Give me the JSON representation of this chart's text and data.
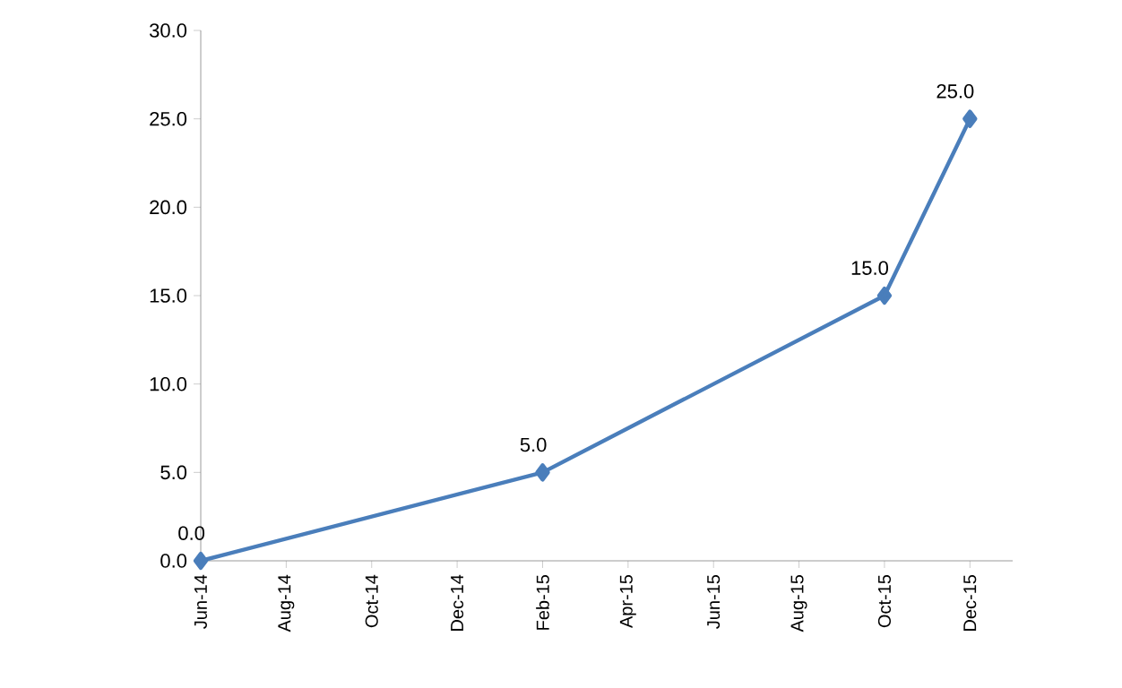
{
  "chart_data": {
    "type": "line",
    "x": [
      "2014-06",
      "2015-02",
      "2015-10",
      "2015-12"
    ],
    "values": [
      0,
      5,
      15,
      25
    ],
    "value_labels": [
      "0.0",
      "5.0",
      "15.0",
      "25.0"
    ],
    "color": "#4a7ebb",
    "marker": "diamond",
    "line_style": "solid",
    "xlim": [
      "2014-06",
      "2016-01"
    ],
    "xticks": [
      {
        "value": "2014-06",
        "label": "Jun-14"
      },
      {
        "value": "2014-08",
        "label": "Aug-14"
      },
      {
        "value": "2014-10",
        "label": "Oct-14"
      },
      {
        "value": "2014-12",
        "label": "Dec-14"
      },
      {
        "value": "2015-02",
        "label": "Feb-15"
      },
      {
        "value": "2015-04",
        "label": "Apr-15"
      },
      {
        "value": "2015-06",
        "label": "Jun-15"
      },
      {
        "value": "2015-08",
        "label": "Aug-15"
      },
      {
        "value": "2015-10",
        "label": "Oct-15"
      },
      {
        "value": "2015-12",
        "label": "Dec-15"
      }
    ],
    "ylim": [
      0,
      30
    ],
    "yticks": [
      {
        "value": 0,
        "label": "0.0"
      },
      {
        "value": 5,
        "label": "5.0"
      },
      {
        "value": 10,
        "label": "10.0"
      },
      {
        "value": 15,
        "label": "15.0"
      },
      {
        "value": 20,
        "label": "20.0"
      },
      {
        "value": 25,
        "label": "25.0"
      },
      {
        "value": 30,
        "label": "30.0"
      }
    ]
  }
}
